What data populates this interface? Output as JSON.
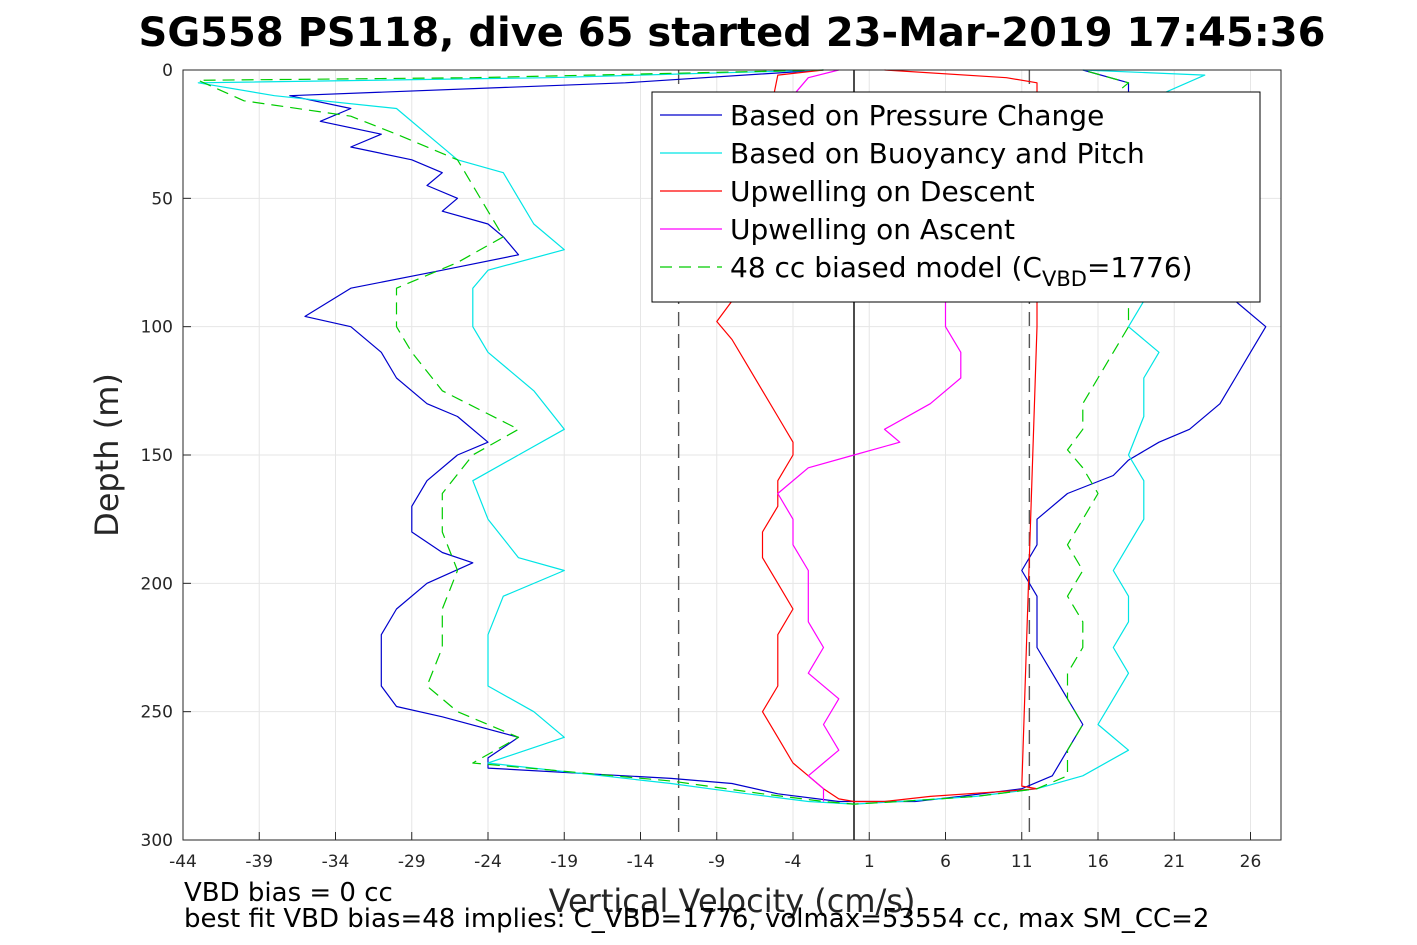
{
  "chart_data": {
    "type": "line",
    "title": "SG558 PS118, dive 65 started 23-Mar-2019 17:45:36",
    "xlabel": "Vertical Velocity (cm/s)",
    "ylabel": "Depth (m)",
    "xlim": [
      -44,
      28
    ],
    "ylim": [
      0,
      300
    ],
    "y_reversed": true,
    "grid": true,
    "x_ticks": [
      "-44",
      "-39",
      "-34",
      "-29",
      "-24",
      "-19",
      "-14",
      "-9",
      "-4",
      "1",
      "6",
      "11",
      "16",
      "21",
      "26"
    ],
    "y_ticks": [
      "0",
      "50",
      "100",
      "150",
      "200",
      "250",
      "300"
    ],
    "legend_position": "top-right",
    "reference_lines": [
      {
        "x": 0,
        "style": "solid",
        "color": "#000000"
      },
      {
        "x": -11.5,
        "style": "dashed",
        "color": "#555555"
      },
      {
        "x": 11.5,
        "style": "dashed",
        "color": "#555555"
      }
    ],
    "series": [
      {
        "name": "Based on Pressure Change",
        "color": "#0000cc",
        "style": "solid",
        "points": [
          [
            -2,
            0
          ],
          [
            -15,
            5
          ],
          [
            -37,
            10
          ],
          [
            -33,
            15
          ],
          [
            -35,
            20
          ],
          [
            -31,
            25
          ],
          [
            -33,
            30
          ],
          [
            -29,
            35
          ],
          [
            -27,
            40
          ],
          [
            -28,
            45
          ],
          [
            -26,
            50
          ],
          [
            -27,
            55
          ],
          [
            -24,
            60
          ],
          [
            -23,
            65
          ],
          [
            -22,
            72
          ],
          [
            -27,
            78
          ],
          [
            -33,
            85
          ],
          [
            -36,
            96
          ],
          [
            -33,
            100
          ],
          [
            -31,
            110
          ],
          [
            -30,
            120
          ],
          [
            -28,
            130
          ],
          [
            -26,
            135
          ],
          [
            -24,
            145
          ],
          [
            -26,
            150
          ],
          [
            -28,
            160
          ],
          [
            -29,
            170
          ],
          [
            -29,
            180
          ],
          [
            -27,
            188
          ],
          [
            -25,
            192
          ],
          [
            -28,
            200
          ],
          [
            -30,
            210
          ],
          [
            -31,
            220
          ],
          [
            -31,
            230
          ],
          [
            -31,
            240
          ],
          [
            -30,
            248
          ],
          [
            -27,
            252
          ],
          [
            -22,
            260
          ],
          [
            -24,
            268
          ],
          [
            -24,
            272
          ],
          [
            -12,
            276
          ],
          [
            -8,
            278
          ],
          [
            -5,
            282
          ],
          [
            -1,
            285
          ],
          [
            1,
            285
          ],
          [
            4,
            285
          ],
          [
            7,
            283
          ],
          [
            11,
            280
          ],
          [
            13,
            275
          ],
          [
            14,
            265
          ],
          [
            15,
            255
          ],
          [
            14,
            245
          ],
          [
            13,
            235
          ],
          [
            12,
            225
          ],
          [
            12,
            215
          ],
          [
            12,
            205
          ],
          [
            11,
            195
          ],
          [
            12,
            185
          ],
          [
            12,
            175
          ],
          [
            14,
            165
          ],
          [
            17,
            158
          ],
          [
            18,
            152
          ],
          [
            20,
            145
          ],
          [
            22,
            140
          ],
          [
            24,
            130
          ],
          [
            25,
            120
          ],
          [
            26,
            110
          ],
          [
            27,
            100
          ],
          [
            25,
            90
          ],
          [
            24,
            80
          ],
          [
            22,
            60
          ],
          [
            20,
            40
          ],
          [
            18,
            20
          ],
          [
            18,
            5
          ],
          [
            15,
            0
          ]
        ]
      },
      {
        "name": "Based on Buoyancy and Pitch",
        "color": "#00e5e5",
        "style": "solid",
        "points": [
          [
            -2,
            0
          ],
          [
            -20,
            3
          ],
          [
            -43,
            5
          ],
          [
            -38,
            10
          ],
          [
            -30,
            15
          ],
          [
            -28,
            25
          ],
          [
            -26,
            35
          ],
          [
            -23,
            40
          ],
          [
            -22,
            50
          ],
          [
            -21,
            60
          ],
          [
            -19,
            70
          ],
          [
            -24,
            78
          ],
          [
            -25,
            85
          ],
          [
            -25,
            100
          ],
          [
            -24,
            110
          ],
          [
            -21,
            125
          ],
          [
            -19,
            140
          ],
          [
            -22,
            150
          ],
          [
            -25,
            160
          ],
          [
            -24,
            175
          ],
          [
            -22,
            190
          ],
          [
            -19,
            195
          ],
          [
            -23,
            205
          ],
          [
            -24,
            220
          ],
          [
            -24,
            240
          ],
          [
            -21,
            250
          ],
          [
            -19,
            260
          ],
          [
            -24,
            270
          ],
          [
            -12,
            278
          ],
          [
            -7,
            282
          ],
          [
            -3,
            285
          ],
          [
            0,
            286
          ],
          [
            3,
            285
          ],
          [
            8,
            283
          ],
          [
            12,
            280
          ],
          [
            15,
            275
          ],
          [
            18,
            265
          ],
          [
            16,
            255
          ],
          [
            17,
            245
          ],
          [
            18,
            235
          ],
          [
            17,
            225
          ],
          [
            18,
            215
          ],
          [
            18,
            205
          ],
          [
            17,
            195
          ],
          [
            18,
            185
          ],
          [
            19,
            175
          ],
          [
            19,
            160
          ],
          [
            18,
            150
          ],
          [
            19,
            135
          ],
          [
            19,
            120
          ],
          [
            20,
            110
          ],
          [
            18,
            100
          ],
          [
            19,
            90
          ],
          [
            20,
            60
          ],
          [
            19,
            30
          ],
          [
            18,
            15
          ],
          [
            23,
            2
          ],
          [
            15,
            0
          ]
        ]
      },
      {
        "name": "Upwelling on Descent",
        "color": "#ff0000",
        "style": "solid",
        "points": [
          [
            -2,
            0
          ],
          [
            -5,
            2
          ],
          [
            -8,
            90
          ],
          [
            -9,
            98
          ],
          [
            -8,
            105
          ],
          [
            -7,
            115
          ],
          [
            -6,
            125
          ],
          [
            -5,
            135
          ],
          [
            -4,
            145
          ],
          [
            -4,
            150
          ],
          [
            -5,
            160
          ],
          [
            -5,
            170
          ],
          [
            -6,
            180
          ],
          [
            -6,
            190
          ],
          [
            -5,
            200
          ],
          [
            -4,
            210
          ],
          [
            -5,
            220
          ],
          [
            -5,
            230
          ],
          [
            -5,
            240
          ],
          [
            -6,
            250
          ],
          [
            -5,
            260
          ],
          [
            -4,
            270
          ],
          [
            -3,
            275
          ],
          [
            -2,
            280
          ],
          [
            -1,
            284
          ],
          [
            0,
            285
          ],
          [
            2,
            285
          ],
          [
            5,
            283
          ],
          [
            10,
            281
          ],
          [
            12,
            280
          ],
          [
            11,
            279
          ],
          [
            12,
            100
          ],
          [
            12,
            5
          ],
          [
            10,
            3
          ],
          [
            2,
            0
          ]
        ]
      },
      {
        "name": "Upwelling on Ascent",
        "color": "#ff00ff",
        "style": "solid",
        "points": [
          [
            -1,
            0
          ],
          [
            -3,
            3
          ],
          [
            -4,
            10
          ],
          [
            6,
            90
          ],
          [
            6,
            100
          ],
          [
            7,
            110
          ],
          [
            7,
            120
          ],
          [
            5,
            130
          ],
          [
            2,
            140
          ],
          [
            3,
            145
          ],
          [
            0,
            150
          ],
          [
            -3,
            155
          ],
          [
            -5,
            165
          ],
          [
            -4,
            175
          ],
          [
            -4,
            185
          ],
          [
            -3,
            195
          ],
          [
            -3,
            205
          ],
          [
            -3,
            215
          ],
          [
            -2,
            225
          ],
          [
            -3,
            235
          ],
          [
            -1,
            245
          ],
          [
            -2,
            255
          ],
          [
            -1,
            265
          ],
          [
            -2,
            270
          ],
          [
            -3,
            275
          ],
          [
            -2,
            280
          ],
          [
            -2,
            285
          ]
        ]
      },
      {
        "name": "48 cc biased model (C_VBD=1776)",
        "color": "#00cc00",
        "style": "dashed",
        "points": [
          [
            -2,
            0
          ],
          [
            -25,
            3
          ],
          [
            -43,
            4
          ],
          [
            -40,
            12
          ],
          [
            -33,
            18
          ],
          [
            -30,
            25
          ],
          [
            -26,
            35
          ],
          [
            -25,
            45
          ],
          [
            -24,
            55
          ],
          [
            -23,
            65
          ],
          [
            -26,
            75
          ],
          [
            -30,
            85
          ],
          [
            -30,
            100
          ],
          [
            -29,
            110
          ],
          [
            -27,
            125
          ],
          [
            -22,
            140
          ],
          [
            -25,
            150
          ],
          [
            -27,
            165
          ],
          [
            -27,
            180
          ],
          [
            -26,
            195
          ],
          [
            -27,
            210
          ],
          [
            -27,
            225
          ],
          [
            -28,
            240
          ],
          [
            -26,
            250
          ],
          [
            -22,
            260
          ],
          [
            -25,
            270
          ],
          [
            -12,
            277
          ],
          [
            -6,
            282
          ],
          [
            -2,
            285
          ],
          [
            0,
            286
          ],
          [
            3,
            285
          ],
          [
            8,
            283
          ],
          [
            12,
            280
          ],
          [
            14,
            275
          ],
          [
            14,
            265
          ],
          [
            15,
            255
          ],
          [
            14,
            245
          ],
          [
            14,
            235
          ],
          [
            15,
            225
          ],
          [
            15,
            215
          ],
          [
            14,
            205
          ],
          [
            15,
            195
          ],
          [
            14,
            185
          ],
          [
            15,
            175
          ],
          [
            16,
            165
          ],
          [
            15,
            155
          ],
          [
            14,
            148
          ],
          [
            15,
            140
          ],
          [
            15,
            130
          ],
          [
            16,
            120
          ],
          [
            17,
            110
          ],
          [
            18,
            100
          ],
          [
            18,
            90
          ],
          [
            17,
            70
          ],
          [
            16,
            40
          ],
          [
            16,
            15
          ],
          [
            18,
            5
          ],
          [
            15,
            0
          ]
        ]
      }
    ]
  },
  "notes": {
    "line1": "VBD bias = 0 cc",
    "line2": "best fit VBD bias=48 implies: C_VBD=1776, volmax=53554 cc, max SM_CC=2"
  }
}
